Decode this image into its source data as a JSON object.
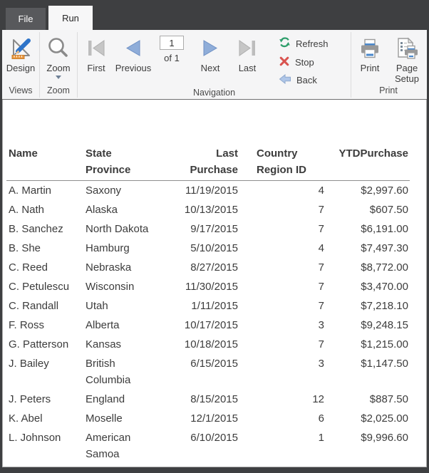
{
  "tabs": {
    "file": "File",
    "run": "Run"
  },
  "ribbon": {
    "design_label": "Design",
    "zoom_label": "Zoom",
    "first_label": "First",
    "previous_label": "Previous",
    "page_value": "1",
    "of_label": "of  1",
    "next_label": "Next",
    "last_label": "Last",
    "refresh_label": "Refresh",
    "stop_label": "Stop",
    "back_label": "Back",
    "print_label": "Print",
    "page_setup_label": "Page Setup",
    "groups": {
      "views": "Views",
      "zoom": "Zoom",
      "navigation": "Navigation",
      "print": "Print"
    }
  },
  "icons": {
    "design": "design-icon (set-square, blue pencil, orange ruler)",
    "zoom": "magnifier-icon",
    "zoom_caret": "chevron-down-icon",
    "first": "skip-to-first-icon (gray)",
    "previous": "previous-arrow-icon (blue)",
    "next": "next-arrow-icon (blue)",
    "last": "skip-to-last-icon (gray)",
    "refresh": "refresh-circular-arrows-icon (green)",
    "stop": "stop-x-icon (red)",
    "back": "back-arrow-icon (light blue)",
    "print": "printer-icon",
    "page_setup": "page-with-printer-icon"
  },
  "colors": {
    "titlebar": "#3e3f41",
    "ribbon_bg": "#f5f5f6",
    "nav_blue": "#8fadd9",
    "nav_gray": "#c3c3c3",
    "refresh_green": "#2e9e6b",
    "stop_red": "#d9534f",
    "back_blue": "#afc6e8",
    "printer_blue": "#4a88cc",
    "text": "#3c3c3c"
  },
  "table": {
    "columns": [
      "Name",
      "State Province",
      "Last Purchase",
      "Country Region ID",
      "YTDPurchase"
    ],
    "rows": [
      [
        "A. Martin",
        "Saxony",
        "11/19/2015",
        "4",
        "$2,997.60"
      ],
      [
        "A. Nath",
        "Alaska",
        "10/13/2015",
        "7",
        "$607.50"
      ],
      [
        "B. Sanchez",
        "North Dakota",
        "9/17/2015",
        "7",
        "$6,191.00"
      ],
      [
        "B. She",
        "Hamburg",
        "5/10/2015",
        "4",
        "$7,497.30"
      ],
      [
        "C. Reed",
        "Nebraska",
        "8/27/2015",
        "7",
        "$8,772.00"
      ],
      [
        "C. Petulescu",
        "Wisconsin",
        "11/30/2015",
        "7",
        "$3,470.00"
      ],
      [
        "C. Randall",
        "Utah",
        "1/11/2015",
        "7",
        "$7,218.10"
      ],
      [
        "F. Ross",
        "Alberta",
        "10/17/2015",
        "3",
        "$9,248.15"
      ],
      [
        "G. Patterson",
        "Kansas",
        "10/18/2015",
        "7",
        "$1,215.00"
      ],
      [
        "J. Bailey",
        "British Columbia",
        "6/15/2015",
        "3",
        "$1,147.50"
      ],
      [
        "J. Peters",
        "England",
        "8/15/2015",
        "12",
        "$887.50"
      ],
      [
        "K. Abel",
        "Moselle",
        "12/1/2015",
        "6",
        "$2,025.00"
      ],
      [
        "L. Johnson",
        "American Samoa",
        "6/10/2015",
        "1",
        "$9,996.60"
      ]
    ]
  }
}
